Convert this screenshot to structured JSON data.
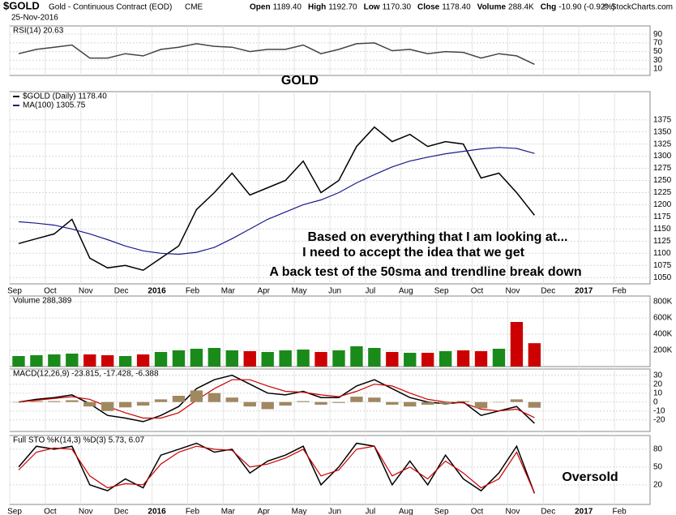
{
  "header": {
    "symbol": "$GOLD",
    "name": "Gold - Continuous Contract (EOD)",
    "exchange": "CME",
    "date": "25-Nov-2016",
    "source": "© StockCharts.com",
    "quote": [
      [
        "Open",
        "1189.40"
      ],
      [
        "High",
        "1192.70"
      ],
      [
        "Low",
        "1170.30"
      ],
      [
        "Close",
        "1178.40"
      ],
      [
        "Volume",
        "288.4K"
      ],
      [
        "Chg",
        "-10.90 (-0.92%)"
      ]
    ]
  },
  "chart_data": [
    {
      "type": "line",
      "title": "RSI(14) 20.63",
      "series": [
        {
          "color": "#444444",
          "values": [
            45,
            55,
            60,
            65,
            35,
            35,
            45,
            40,
            55,
            60,
            68,
            62,
            60,
            50,
            55,
            55,
            65,
            45,
            55,
            68,
            70,
            52,
            55,
            45,
            50,
            48,
            35,
            45,
            40,
            20.63,
            null,
            null,
            null,
            null,
            null,
            null
          ]
        }
      ],
      "ylim": [
        -5,
        109
      ],
      "yticks": [
        10,
        30,
        50,
        70,
        90
      ]
    },
    {
      "type": "line",
      "annotations": [
        "GOLD",
        "Based on everything that I am looking at...",
        "I need to accept the idea that we get",
        "A back test of the 50sma and trendline break down"
      ],
      "categories": [
        "Sep",
        null,
        "Oct",
        null,
        "Nov",
        null,
        "Dec",
        null,
        "2016",
        null,
        "Feb",
        null,
        "Mar",
        null,
        "Apr",
        null,
        "May",
        null,
        "Jun",
        null,
        "Jul",
        null,
        "Aug",
        null,
        "Sep",
        null,
        "Oct",
        null,
        "Nov",
        null,
        "Dec",
        null,
        "2017",
        null,
        "Feb",
        null
      ],
      "series": [
        {
          "name": "$GOLD (Daily) 1178.40",
          "color": "#000000",
          "values": [
            1120,
            1130,
            1140,
            1170,
            1090,
            1070,
            1075,
            1065,
            1090,
            1115,
            1190,
            1225,
            1265,
            1220,
            1235,
            1250,
            1290,
            1225,
            1250,
            1320,
            1360,
            1330,
            1345,
            1320,
            1330,
            1325,
            1255,
            1265,
            1225,
            1178.4,
            null,
            null,
            null,
            null,
            null,
            null
          ]
        },
        {
          "name": "MA(100) 1305.75",
          "color": "#1a1a8c",
          "values": [
            1165,
            1162,
            1158,
            1150,
            1140,
            1128,
            1115,
            1105,
            1100,
            1098,
            1102,
            1112,
            1130,
            1150,
            1170,
            1185,
            1200,
            1210,
            1225,
            1245,
            1262,
            1278,
            1290,
            1298,
            1305,
            1310,
            1315,
            1318,
            1316,
            1305.75,
            null,
            null,
            null,
            null,
            null,
            null
          ]
        }
      ],
      "ylim": [
        1037,
        1433
      ],
      "yticks": [
        1050,
        1075,
        1100,
        1125,
        1150,
        1175,
        1200,
        1225,
        1250,
        1275,
        1300,
        1325,
        1350,
        1375
      ]
    },
    {
      "type": "bar",
      "title": "Volume 288,389",
      "up_color": "#1a8a1a",
      "down_color": "#cc0000",
      "series": [
        {
          "values": [
            130000,
            140000,
            150000,
            160000,
            150000,
            140000,
            130000,
            150000,
            180000,
            200000,
            220000,
            230000,
            200000,
            190000,
            180000,
            200000,
            210000,
            180000,
            200000,
            250000,
            230000,
            180000,
            170000,
            170000,
            190000,
            200000,
            190000,
            220000,
            550000,
            288389,
            null,
            null,
            null,
            null,
            null,
            null
          ]
        }
      ],
      "ylim": [
        0,
        870000
      ],
      "yticks": [
        {
          "value": 200000,
          "label": "200K"
        },
        {
          "value": 400000,
          "label": "400K"
        },
        {
          "value": 600000,
          "label": "600K"
        },
        {
          "value": 800000,
          "label": "800K"
        }
      ]
    },
    {
      "type": "line",
      "title": "MACD(12,26,9) -23.815, -17.428, -6.388",
      "series": [
        {
          "color": "#000000",
          "values": [
            0,
            3,
            5,
            8,
            -2,
            -15,
            -18,
            -22,
            -15,
            -5,
            15,
            25,
            30,
            20,
            10,
            8,
            12,
            5,
            5,
            18,
            25,
            15,
            5,
            0,
            -2,
            0,
            -15,
            -10,
            -5,
            -23.815,
            null,
            null,
            null,
            null,
            null,
            null
          ]
        },
        {
          "color": "#cc0000",
          "values": [
            0,
            2,
            4,
            6,
            3,
            -5,
            -12,
            -18,
            -18,
            -12,
            2,
            15,
            25,
            25,
            18,
            12,
            11,
            8,
            6,
            12,
            20,
            18,
            10,
            3,
            0,
            -1,
            -8,
            -10,
            -8,
            -17.428,
            null,
            null,
            null,
            null,
            null,
            null
          ]
        },
        {
          "color": "#a08860",
          "mark": "histogram",
          "values": [
            0,
            1,
            1,
            2,
            -5,
            -10,
            -6,
            -4,
            3,
            7,
            13,
            10,
            5,
            -5,
            -8,
            -4,
            1,
            -3,
            -1,
            6,
            5,
            -3,
            -5,
            -3,
            -2,
            1,
            -7,
            0,
            3,
            -6.388,
            null,
            null,
            null,
            null,
            null,
            null
          ]
        }
      ],
      "ylim": [
        -33,
        37
      ],
      "yticks": [
        -20,
        -10,
        0,
        10,
        20,
        30
      ]
    },
    {
      "type": "line",
      "title": "Full STO %K(14,3) %D(3) 5.73, 6.07",
      "annotations": [
        "Oversold"
      ],
      "categories": [
        "Sep",
        null,
        "Oct",
        null,
        "Nov",
        null,
        "Dec",
        null,
        "2016",
        null,
        "Feb",
        null,
        "Mar",
        null,
        "Apr",
        null,
        "May",
        null,
        "Jun",
        null,
        "Jul",
        null,
        "Aug",
        null,
        "Sep",
        null,
        "Oct",
        null,
        "Nov",
        null,
        "Dec",
        null,
        "2017",
        null,
        "Feb",
        null
      ],
      "series": [
        {
          "color": "#000000",
          "values": [
            50,
            85,
            80,
            85,
            20,
            10,
            30,
            15,
            70,
            80,
            90,
            75,
            80,
            40,
            60,
            70,
            85,
            20,
            50,
            90,
            85,
            20,
            60,
            20,
            70,
            30,
            10,
            40,
            85,
            5.73,
            null,
            null,
            null,
            null,
            null,
            null
          ]
        },
        {
          "color": "#cc0000",
          "values": [
            45,
            75,
            82,
            80,
            35,
            15,
            22,
            20,
            55,
            75,
            85,
            80,
            78,
            50,
            55,
            65,
            80,
            35,
            45,
            80,
            85,
            35,
            50,
            30,
            60,
            40,
            15,
            30,
            75,
            6.07,
            null,
            null,
            null,
            null,
            null,
            null
          ]
        }
      ],
      "ylim": [
        -13,
        103
      ],
      "yticks": [
        20,
        50,
        80
      ]
    }
  ]
}
